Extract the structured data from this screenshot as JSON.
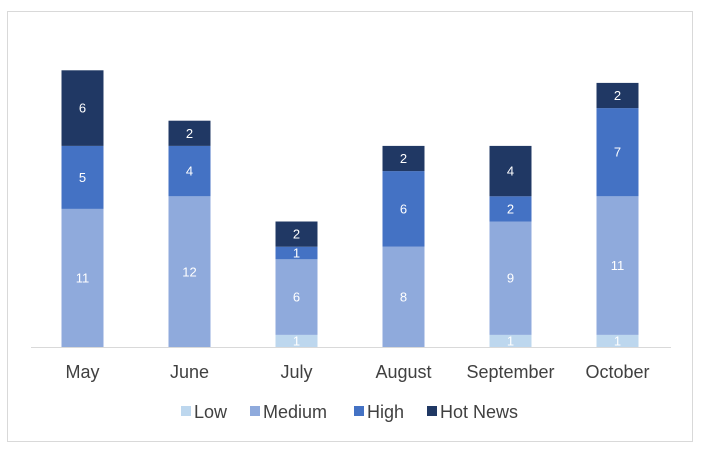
{
  "chart_data": {
    "type": "bar",
    "stacked": true,
    "title": "",
    "xlabel": "",
    "ylabel": "",
    "categories": [
      "May",
      "June",
      "July",
      "August",
      "September",
      "October"
    ],
    "series": [
      {
        "name": "Low",
        "color": "#bdd7ee",
        "values": [
          0,
          0,
          1,
          0,
          1,
          1
        ]
      },
      {
        "name": "Medium",
        "color": "#8faadc",
        "values": [
          11,
          12,
          6,
          8,
          9,
          11
        ]
      },
      {
        "name": "High",
        "color": "#4472c4",
        "values": [
          5,
          4,
          1,
          6,
          2,
          7
        ]
      },
      {
        "name": "Hot News",
        "color": "#203864",
        "values": [
          6,
          2,
          2,
          2,
          4,
          2
        ]
      }
    ],
    "ylim": [
      0,
      22
    ],
    "grid": false,
    "legend_position": "bottom"
  }
}
